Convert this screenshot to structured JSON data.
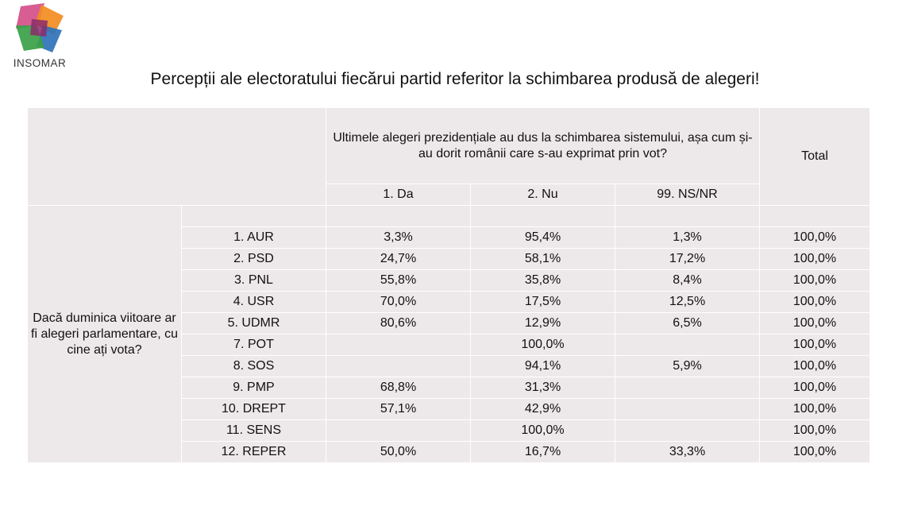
{
  "brand": {
    "name": "INSOMAR",
    "colors": [
      "#d54f8a",
      "#f28c22",
      "#2f72b8",
      "#3aa047",
      "#8b2a6b"
    ]
  },
  "title": "Percepții ale electoratului fiecărui partid referitor la schimbarea produsă de alegeri!",
  "table": {
    "question": "Ultimele alegeri prezidențiale au dus la schimbarea sistemului, așa cum și-au dorit românii care s-au exprimat prin vot?",
    "total_label": "Total",
    "columns": [
      "1. Da",
      "2. Nu",
      "99. NS/NR"
    ],
    "row_group_label": "Dacă duminica viitoare ar fi alegeri parlamentare, cu cine ați vota?",
    "rows": [
      {
        "party": "1. AUR",
        "da": "3,3%",
        "nu": "95,4%",
        "nsnr": "1,3%",
        "total": "100,0%"
      },
      {
        "party": "2. PSD",
        "da": "24,7%",
        "nu": "58,1%",
        "nsnr": "17,2%",
        "total": "100,0%"
      },
      {
        "party": "3. PNL",
        "da": "55,8%",
        "nu": "35,8%",
        "nsnr": "8,4%",
        "total": "100,0%"
      },
      {
        "party": "4. USR",
        "da": "70,0%",
        "nu": "17,5%",
        "nsnr": "12,5%",
        "total": "100,0%"
      },
      {
        "party": "5. UDMR",
        "da": "80,6%",
        "nu": "12,9%",
        "nsnr": "6,5%",
        "total": "100,0%"
      },
      {
        "party": "7. POT",
        "da": "",
        "nu": "100,0%",
        "nsnr": "",
        "total": "100,0%"
      },
      {
        "party": "8. SOS",
        "da": "",
        "nu": "94,1%",
        "nsnr": "5,9%",
        "total": "100,0%"
      },
      {
        "party": "9. PMP",
        "da": "68,8%",
        "nu": "31,3%",
        "nsnr": "",
        "total": "100,0%"
      },
      {
        "party": "10. DREPT",
        "da": "57,1%",
        "nu": "42,9%",
        "nsnr": "",
        "total": "100,0%"
      },
      {
        "party": "11. SENS",
        "da": "",
        "nu": "100,0%",
        "nsnr": "",
        "total": "100,0%"
      },
      {
        "party": "12. REPER",
        "da": "50,0%",
        "nu": "16,7%",
        "nsnr": "33,3%",
        "total": "100,0%"
      }
    ]
  }
}
